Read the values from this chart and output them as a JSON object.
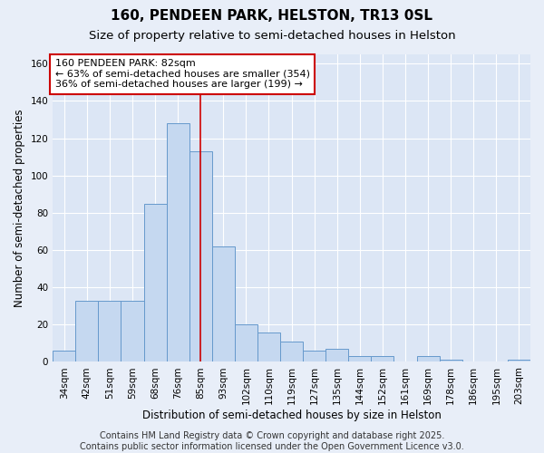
{
  "title": "160, PENDEEN PARK, HELSTON, TR13 0SL",
  "subtitle": "Size of property relative to semi-detached houses in Helston",
  "xlabel": "Distribution of semi-detached houses by size in Helston",
  "ylabel": "Number of semi-detached properties",
  "categories": [
    "34sqm",
    "42sqm",
    "51sqm",
    "59sqm",
    "68sqm",
    "76sqm",
    "85sqm",
    "93sqm",
    "102sqm",
    "110sqm",
    "119sqm",
    "127sqm",
    "135sqm",
    "144sqm",
    "152sqm",
    "161sqm",
    "169sqm",
    "178sqm",
    "186sqm",
    "195sqm",
    "203sqm"
  ],
  "values": [
    6,
    33,
    33,
    33,
    85,
    128,
    113,
    62,
    20,
    16,
    11,
    6,
    7,
    3,
    3,
    0,
    3,
    1,
    0,
    0,
    1
  ],
  "bar_color": "#c5d8f0",
  "bar_edge_color": "#6699cc",
  "vline_x_index": 6,
  "vline_color": "#cc0000",
  "annotation_line1": "160 PENDEEN PARK: 82sqm",
  "annotation_line2": "← 63% of semi-detached houses are smaller (354)",
  "annotation_line3": "36% of semi-detached houses are larger (199) →",
  "annotation_box_color": "#cc0000",
  "ylim": [
    0,
    165
  ],
  "yticks": [
    0,
    20,
    40,
    60,
    80,
    100,
    120,
    140,
    160
  ],
  "footer_line1": "Contains HM Land Registry data © Crown copyright and database right 2025.",
  "footer_line2": "Contains public sector information licensed under the Open Government Licence v3.0.",
  "bg_color": "#e8eef8",
  "plot_bg_color": "#dce6f5",
  "grid_color": "#ffffff",
  "title_fontsize": 11,
  "subtitle_fontsize": 9.5,
  "axis_label_fontsize": 8.5,
  "tick_fontsize": 7.5,
  "annotation_fontsize": 8,
  "footer_fontsize": 7
}
